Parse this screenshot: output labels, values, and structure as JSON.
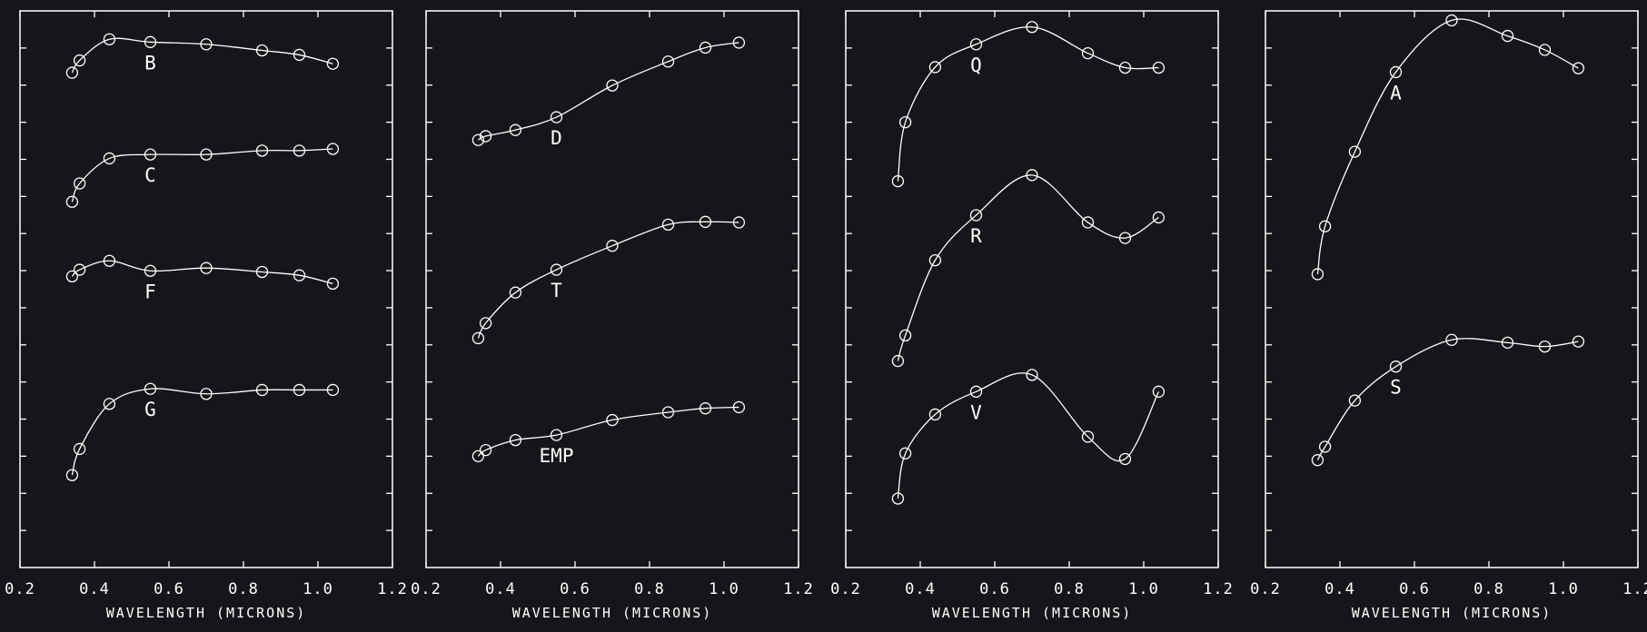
{
  "colors": {
    "background": "#151619",
    "foreground": "#ffffff"
  },
  "chart_data": [
    {
      "type": "line",
      "xlabel": "WAVELENGTH (MICRONS)",
      "ylabel": "",
      "xlim": [
        0.2,
        1.2
      ],
      "x_ticks": [
        "0.2",
        "0.4",
        "0.6",
        "0.8",
        "1.0",
        "1.2"
      ],
      "y_tick_count": 15,
      "grid": false,
      "x": [
        0.34,
        0.36,
        0.44,
        0.55,
        0.7,
        0.85,
        0.95,
        1.04
      ],
      "series": [
        {
          "name": "B",
          "values": [
            0.889,
            0.911,
            0.949,
            0.944,
            0.94,
            0.929,
            0.921,
            0.905
          ]
        },
        {
          "name": "C",
          "values": [
            0.657,
            0.69,
            0.735,
            0.742,
            0.742,
            0.749,
            0.749,
            0.752
          ]
        },
        {
          "name": "F",
          "values": [
            0.523,
            0.535,
            0.551,
            0.533,
            0.538,
            0.531,
            0.525,
            0.51
          ]
        },
        {
          "name": "G",
          "values": [
            0.166,
            0.213,
            0.294,
            0.321,
            0.312,
            0.319,
            0.319,
            0.319
          ]
        }
      ]
    },
    {
      "type": "line",
      "xlabel": "WAVELENGTH (MICRONS)",
      "ylabel": "",
      "xlim": [
        0.2,
        1.2
      ],
      "x_ticks": [
        "0.2",
        "0.4",
        "0.6",
        "0.8",
        "1.0",
        "1.2"
      ],
      "y_tick_count": 15,
      "grid": false,
      "x": [
        0.34,
        0.36,
        0.44,
        0.55,
        0.7,
        0.85,
        0.95,
        1.04
      ],
      "series": [
        {
          "name": "D",
          "values": [
            0.768,
            0.775,
            0.786,
            0.809,
            0.866,
            0.909,
            0.934,
            0.943
          ]
        },
        {
          "name": "T",
          "values": [
            0.412,
            0.439,
            0.494,
            0.535,
            0.578,
            0.616,
            0.621,
            0.62
          ]
        },
        {
          "name": "EMP",
          "values": [
            0.2,
            0.211,
            0.229,
            0.238,
            0.265,
            0.279,
            0.286,
            0.288
          ]
        }
      ]
    },
    {
      "type": "line",
      "xlabel": "WAVELENGTH (MICRONS)",
      "ylabel": "",
      "xlim": [
        0.2,
        1.2
      ],
      "x_ticks": [
        "0.2",
        "0.4",
        "0.6",
        "0.8",
        "1.0",
        "1.2"
      ],
      "y_tick_count": 15,
      "grid": false,
      "x": [
        0.34,
        0.36,
        0.44,
        0.55,
        0.7,
        0.85,
        0.95,
        1.04
      ],
      "series": [
        {
          "name": "Q",
          "values": [
            0.694,
            0.8,
            0.899,
            0.94,
            0.971,
            0.924,
            0.898,
            0.898
          ]
        },
        {
          "name": "R",
          "values": [
            0.371,
            0.417,
            0.552,
            0.633,
            0.705,
            0.62,
            0.592,
            0.629
          ]
        },
        {
          "name": "V",
          "values": [
            0.124,
            0.205,
            0.275,
            0.316,
            0.346,
            0.235,
            0.195,
            0.316
          ]
        }
      ]
    },
    {
      "type": "line",
      "xlabel": "WAVELENGTH (MICRONS)",
      "ylabel": "",
      "xlim": [
        0.2,
        1.2
      ],
      "x_ticks": [
        "0.2",
        "0.4",
        "0.6",
        "0.8",
        "1.0",
        "1.2"
      ],
      "y_tick_count": 15,
      "grid": false,
      "x": [
        0.34,
        0.36,
        0.44,
        0.55,
        0.7,
        0.85,
        0.95,
        1.04
      ],
      "series": [
        {
          "name": "A",
          "values": [
            0.527,
            0.613,
            0.747,
            0.89,
            0.983,
            0.955,
            0.93,
            0.897
          ]
        },
        {
          "name": "S",
          "values": [
            0.193,
            0.217,
            0.3,
            0.361,
            0.409,
            0.404,
            0.397,
            0.406
          ]
        }
      ]
    }
  ]
}
